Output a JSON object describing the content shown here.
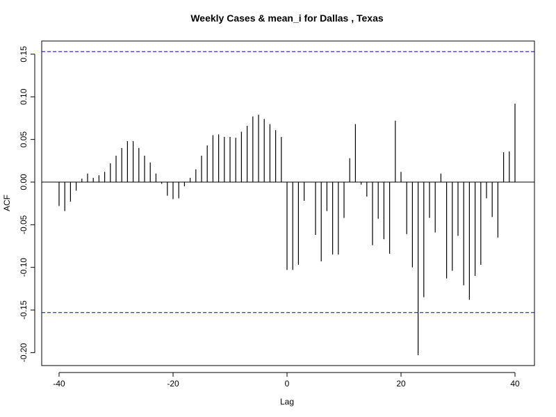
{
  "chart_data": {
    "type": "bar",
    "title": "Weekly Cases & mean_i for Dallas , Texas",
    "xlabel": "Lag",
    "ylabel": "ACF",
    "xlim": [
      -40,
      40
    ],
    "ylim": [
      -0.205,
      0.16
    ],
    "x_ticks": [
      -40,
      -20,
      0,
      20,
      40
    ],
    "x_tick_labels": [
      "-40",
      "-20",
      "0",
      "20",
      "40"
    ],
    "y_ticks": [
      -0.2,
      -0.15,
      -0.1,
      -0.05,
      0.0,
      0.05,
      0.1,
      0.15
    ],
    "y_tick_labels": [
      "-0.20",
      "-0.15",
      "-0.10",
      "-0.05",
      "0.00",
      "0.05",
      "0.10",
      "0.15"
    ],
    "confidence_bounds": [
      0.153,
      -0.153
    ],
    "confidence_color": "#0000cc",
    "bar_color": "#000000",
    "grid": false,
    "legend": "none",
    "lags": [
      -40,
      -39,
      -38,
      -37,
      -36,
      -35,
      -34,
      -33,
      -32,
      -31,
      -30,
      -29,
      -28,
      -27,
      -26,
      -25,
      -24,
      -23,
      -22,
      -21,
      -20,
      -19,
      -18,
      -17,
      -16,
      -15,
      -14,
      -13,
      -12,
      -11,
      -10,
      -9,
      -8,
      -7,
      -6,
      -5,
      -4,
      -3,
      -2,
      -1,
      0,
      1,
      2,
      3,
      4,
      5,
      6,
      7,
      8,
      9,
      10,
      11,
      12,
      13,
      14,
      15,
      16,
      17,
      18,
      19,
      20,
      21,
      22,
      23,
      24,
      25,
      26,
      27,
      28,
      29,
      30,
      31,
      32,
      33,
      34,
      35,
      36,
      37,
      38,
      39,
      40
    ],
    "values": [
      -0.028,
      -0.034,
      -0.023,
      -0.01,
      0.004,
      0.01,
      0.005,
      0.008,
      0.012,
      0.022,
      0.031,
      0.04,
      0.048,
      0.048,
      0.04,
      0.031,
      0.023,
      0.01,
      -0.002,
      -0.016,
      -0.02,
      -0.019,
      -0.005,
      0.005,
      0.015,
      0.031,
      0.043,
      0.055,
      0.056,
      0.053,
      0.053,
      0.052,
      0.059,
      0.066,
      0.077,
      0.079,
      0.074,
      0.068,
      0.061,
      0.053,
      -0.103,
      -0.103,
      -0.097,
      -0.022,
      0.0,
      -0.062,
      -0.093,
      -0.034,
      -0.085,
      -0.085,
      -0.042,
      0.028,
      0.068,
      -0.003,
      -0.017,
      -0.074,
      -0.043,
      -0.067,
      -0.084,
      0.072,
      0.012,
      -0.061,
      -0.1,
      -0.203,
      -0.135,
      -0.042,
      -0.059,
      0.01,
      -0.113,
      -0.104,
      -0.063,
      -0.121,
      -0.138,
      -0.11,
      -0.097,
      -0.019,
      -0.041,
      -0.065,
      0.035,
      0.036,
      0.092
    ]
  }
}
